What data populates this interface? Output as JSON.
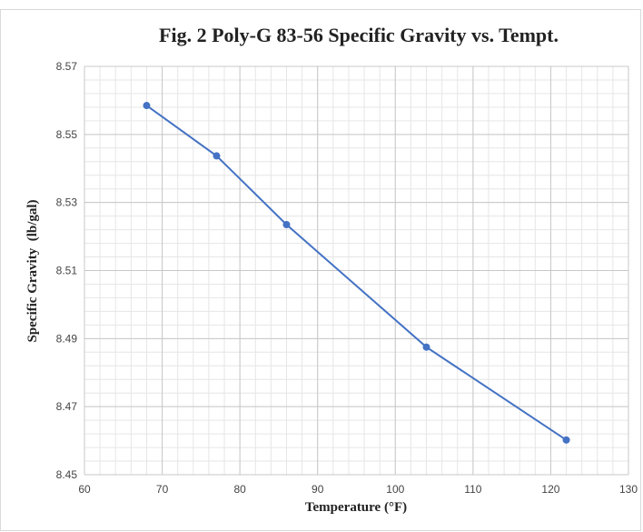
{
  "chart_data": {
    "type": "line",
    "title": "Fig. 2 Poly-G 83-56 Specific Gravity vs. Tempt.",
    "xlabel": "Temperature (°F)",
    "ylabel": "Specific Gravity  (lb/gal)",
    "xlim": [
      60,
      130
    ],
    "ylim": [
      8.45,
      8.57
    ],
    "xticks": [
      "60",
      "70",
      "80",
      "90",
      "100",
      "110",
      "120",
      "130"
    ],
    "yticks": [
      "8.45",
      "8.47",
      "8.49",
      "8.51",
      "8.53",
      "8.55",
      "8.57"
    ],
    "grid": true,
    "legend": "none",
    "series": [
      {
        "color": "#4472c4",
        "x": [
          68,
          77,
          86,
          104,
          122
        ],
        "y": [
          8.5585,
          8.5437,
          8.5235,
          8.4875,
          8.4602
        ]
      }
    ]
  }
}
